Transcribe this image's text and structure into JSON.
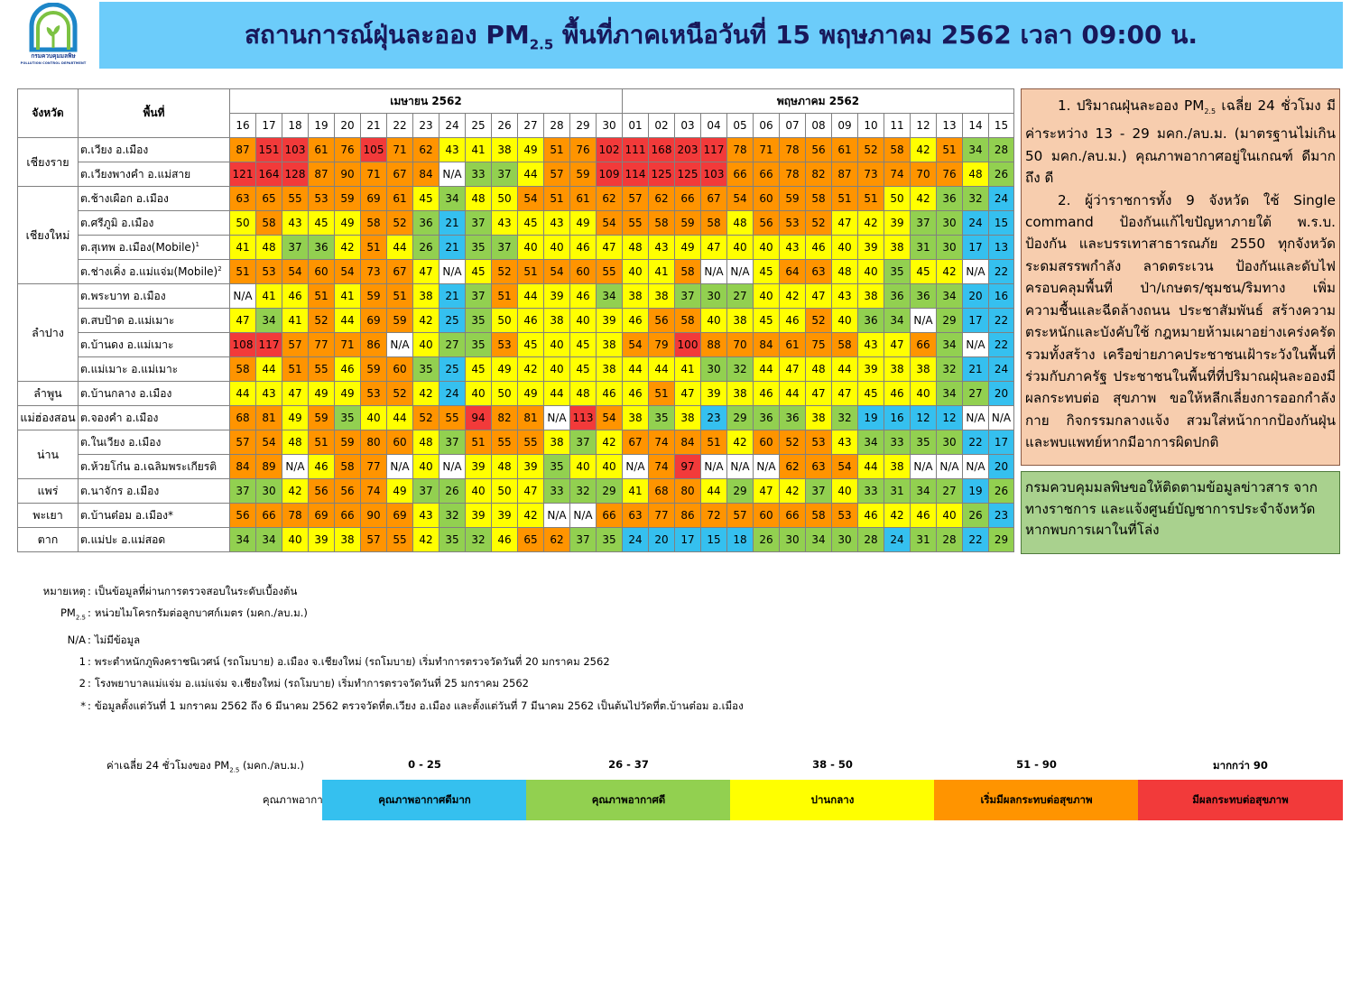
{
  "logo": {
    "org_th": "กรมควบคุมมลพิษ",
    "org_en": "POLLUTION CONTROL DEPARTMENT"
  },
  "title": {
    "pre": "สถานการณ์ฝุ่นละออง PM",
    "sub": "2.5",
    "post": " พื้นที่ภาคเหนือวันที่ 15 พฤษภาคม 2562 เวลา 09:00 น."
  },
  "table": {
    "col_province": "จังหวัด",
    "col_area": "พื้นที่",
    "month1": "เมษายน 2562",
    "month2": "พฤษภาคม 2562",
    "days": [
      "16",
      "17",
      "18",
      "19",
      "20",
      "21",
      "22",
      "23",
      "24",
      "25",
      "26",
      "27",
      "28",
      "29",
      "30",
      "01",
      "02",
      "03",
      "04",
      "05",
      "06",
      "07",
      "08",
      "09",
      "10",
      "11",
      "12",
      "13",
      "14",
      "15"
    ],
    "provinces": [
      {
        "name": "เชียงราย",
        "rows": [
          {
            "area": "ต.เวียง อ.เมือง",
            "sup": "",
            "values": [
              "87",
              "151",
              "103",
              "61",
              "76",
              "105",
              "71",
              "62",
              "43",
              "41",
              "38",
              "49",
              "51",
              "76",
              "102",
              "111",
              "168",
              "203",
              "117",
              "78",
              "71",
              "78",
              "56",
              "61",
              "52",
              "58",
              "42",
              "51",
              "34",
              "28"
            ]
          },
          {
            "area": "ต.เวียงพางคำ อ.แม่สาย",
            "sup": "",
            "values": [
              "121",
              "164",
              "128",
              "87",
              "90",
              "71",
              "67",
              "84",
              "N/A",
              "33",
              "37",
              "44",
              "57",
              "59",
              "109",
              "114",
              "125",
              "125",
              "103",
              "66",
              "66",
              "78",
              "82",
              "87",
              "73",
              "74",
              "70",
              "76",
              "48",
              "26"
            ]
          }
        ]
      },
      {
        "name": "เชียงใหม่",
        "rows": [
          {
            "area": "ต.ช้างเผือก อ.เมือง",
            "sup": "",
            "values": [
              "63",
              "65",
              "55",
              "53",
              "59",
              "69",
              "61",
              "45",
              "34",
              "48",
              "50",
              "54",
              "51",
              "61",
              "62",
              "57",
              "62",
              "66",
              "67",
              "54",
              "60",
              "59",
              "58",
              "51",
              "51",
              "50",
              "42",
              "36",
              "32",
              "24"
            ]
          },
          {
            "area": "ต.ศรีภูมิ อ.เมือง",
            "sup": "",
            "values": [
              "50",
              "58",
              "43",
              "45",
              "49",
              "58",
              "52",
              "36",
              "21",
              "37",
              "43",
              "45",
              "43",
              "49",
              "54",
              "55",
              "58",
              "59",
              "58",
              "48",
              "56",
              "53",
              "52",
              "47",
              "42",
              "39",
              "37",
              "30",
              "24",
              "15"
            ]
          },
          {
            "area": "ต.สุเทพ อ.เมือง(Mobile)",
            "sup": "1",
            "values": [
              "41",
              "48",
              "37",
              "36",
              "42",
              "51",
              "44",
              "26",
              "21",
              "35",
              "37",
              "40",
              "40",
              "46",
              "47",
              "48",
              "43",
              "49",
              "47",
              "40",
              "40",
              "43",
              "46",
              "40",
              "39",
              "38",
              "31",
              "30",
              "17",
              "13"
            ]
          },
          {
            "area": "ต.ช่างเคิ่ง อ.แม่แจ่ม(Mobile)",
            "sup": "2",
            "values": [
              "51",
              "53",
              "54",
              "60",
              "54",
              "73",
              "67",
              "47",
              "N/A",
              "45",
              "52",
              "51",
              "54",
              "60",
              "55",
              "40",
              "41",
              "58",
              "N/A",
              "N/A",
              "45",
              "64",
              "63",
              "48",
              "40",
              "35",
              "45",
              "42",
              "N/A",
              "22"
            ]
          }
        ]
      },
      {
        "name": "ลำปาง",
        "rows": [
          {
            "area": "ต.พระบาท อ.เมือง",
            "sup": "",
            "values": [
              "N/A",
              "41",
              "46",
              "51",
              "41",
              "59",
              "51",
              "38",
              "21",
              "37",
              "51",
              "44",
              "39",
              "46",
              "34",
              "38",
              "38",
              "37",
              "30",
              "27",
              "40",
              "42",
              "47",
              "43",
              "38",
              "36",
              "36",
              "34",
              "20",
              "16"
            ]
          },
          {
            "area": "ต.สบป้าด อ.แม่เมาะ",
            "sup": "",
            "values": [
              "47",
              "34",
              "41",
              "52",
              "44",
              "69",
              "59",
              "42",
              "25",
              "35",
              "50",
              "46",
              "38",
              "40",
              "39",
              "46",
              "56",
              "58",
              "40",
              "38",
              "45",
              "46",
              "52",
              "40",
              "36",
              "34",
              "N/A",
              "29",
              "17",
              "22"
            ]
          },
          {
            "area": "ต.บ้านดง อ.แม่เมาะ",
            "sup": "",
            "values": [
              "108",
              "117",
              "57",
              "77",
              "71",
              "86",
              "N/A",
              "40",
              "27",
              "35",
              "53",
              "45",
              "40",
              "45",
              "38",
              "54",
              "79",
              "100",
              "88",
              "70",
              "84",
              "61",
              "75",
              "58",
              "43",
              "47",
              "66",
              "34",
              "N/A",
              "22"
            ]
          },
          {
            "area": "ต.แม่เมาะ อ.แม่เมาะ",
            "sup": "",
            "values": [
              "58",
              "44",
              "51",
              "55",
              "46",
              "59",
              "60",
              "35",
              "25",
              "45",
              "49",
              "42",
              "40",
              "45",
              "38",
              "44",
              "44",
              "41",
              "30",
              "32",
              "44",
              "47",
              "48",
              "44",
              "39",
              "38",
              "38",
              "32",
              "21",
              "24"
            ]
          }
        ]
      },
      {
        "name": "ลำพูน",
        "rows": [
          {
            "area": "ต.บ้านกลาง อ.เมือง",
            "sup": "",
            "values": [
              "44",
              "43",
              "47",
              "49",
              "49",
              "53",
              "52",
              "42",
              "24",
              "40",
              "50",
              "49",
              "44",
              "48",
              "46",
              "46",
              "51",
              "47",
              "39",
              "38",
              "46",
              "44",
              "47",
              "47",
              "45",
              "46",
              "40",
              "34",
              "27",
              "20"
            ]
          }
        ]
      },
      {
        "name": "แม่ฮ่องสอน",
        "rows": [
          {
            "area": "ต.จองคำ อ.เมือง",
            "sup": "",
            "values": [
              "68",
              "81",
              "49",
              "59",
              "35",
              "40",
              "44",
              "52",
              "55",
              "94",
              "82",
              "81",
              "N/A",
              "113",
              "54",
              "38",
              "35",
              "38",
              "23",
              "29",
              "36",
              "36",
              "38",
              "32",
              "19",
              "16",
              "12",
              "12",
              "N/A",
              "N/A"
            ]
          }
        ]
      },
      {
        "name": "น่าน",
        "rows": [
          {
            "area": "ต.ในเวียง อ.เมือง",
            "sup": "",
            "values": [
              "57",
              "54",
              "48",
              "51",
              "59",
              "80",
              "60",
              "48",
              "37",
              "51",
              "55",
              "55",
              "38",
              "37",
              "42",
              "67",
              "74",
              "84",
              "51",
              "42",
              "60",
              "52",
              "53",
              "43",
              "34",
              "33",
              "35",
              "30",
              "22",
              "17"
            ]
          },
          {
            "area": "ต.ห้วยโก๋น อ.เฉลิมพระเกียรติ",
            "sup": "",
            "values": [
              "84",
              "89",
              "N/A",
              "46",
              "58",
              "77",
              "N/A",
              "40",
              "N/A",
              "39",
              "48",
              "39",
              "35",
              "40",
              "40",
              "N/A",
              "74",
              "97",
              "N/A",
              "N/A",
              "N/A",
              "62",
              "63",
              "54",
              "44",
              "38",
              "N/A",
              "N/A",
              "N/A",
              "20"
            ]
          }
        ]
      },
      {
        "name": "แพร่",
        "rows": [
          {
            "area": "ต.นาจักร อ.เมือง",
            "sup": "",
            "values": [
              "37",
              "30",
              "42",
              "56",
              "56",
              "74",
              "49",
              "37",
              "26",
              "40",
              "50",
              "47",
              "33",
              "32",
              "29",
              "41",
              "68",
              "80",
              "44",
              "29",
              "47",
              "42",
              "37",
              "40",
              "33",
              "31",
              "34",
              "27",
              "19",
              "26"
            ]
          }
        ]
      },
      {
        "name": "พะเยา",
        "rows": [
          {
            "area": "ต.บ้านต๋อม อ.เมือง*",
            "sup": "",
            "values": [
              "56",
              "66",
              "78",
              "69",
              "66",
              "90",
              "69",
              "43",
              "32",
              "39",
              "39",
              "42",
              "N/A",
              "N/A",
              "66",
              "63",
              "77",
              "86",
              "72",
              "57",
              "60",
              "66",
              "58",
              "53",
              "46",
              "42",
              "46",
              "40",
              "26",
              "23"
            ]
          }
        ]
      },
      {
        "name": "ตาก",
        "rows": [
          {
            "area": "ต.แม่ปะ อ.แม่สอด",
            "sup": "",
            "values": [
              "34",
              "34",
              "40",
              "39",
              "38",
              "57",
              "55",
              "42",
              "35",
              "32",
              "46",
              "65",
              "62",
              "37",
              "35",
              "24",
              "20",
              "17",
              "15",
              "18",
              "26",
              "30",
              "34",
              "30",
              "28",
              "24",
              "31",
              "28",
              "22",
              "29"
            ]
          }
        ]
      }
    ]
  },
  "notice": {
    "p1_pre": "1. ปริมาณฝุ่นละออง PM",
    "p1_sub": "2.5",
    "p1_post": " เฉลี่ย 24 ชั่วโมง มีค่าระหว่าง 13 - 29 มคก./ลบ.ม. (มาตรฐานไม่เกิน 50 มคก./ลบ.ม.) คุณภาพอากาศอยู่ในเกณฑ์ ดีมากถึง ดี",
    "p2": "2. ผู้ว่าราชการทั้ง 9 จังหวัด ใช้ Single command ป้องกันแก้ไขปัญหาภายใต้ พ.ร.บ. ป้องกัน และบรรเทาสาธารณภัย 2550 ทุกจังหวัด ระดมสรรพกำลัง ลาดตระเวน ป้องกันและดับไฟ ครอบคลุมพื้นที่ ป่า/เกษตร/ชุมชน/ริมทาง เพิ่มความชื้นและฉีดล้างถนน ประชาสัมพันธ์ สร้างความตระหนักและบังคับใช้ กฎหมายห้ามเผาอย่างเคร่งครัดรวมทั้งสร้าง เครือข่ายภาคประชาชนเฝ้าระวังในพื้นที่ร่วมกับภาครัฐ ประชาชนในพื้นที่ที่ปริมาณฝุ่นละอองมีผลกระทบต่อ สุขภาพ ขอให้หลีกเลี่ยงการออกกำลังกาย กิจกรรมกลางแจ้ง สวมใส่หน้ากากป้องกันฝุ่น และพบแพทย์หากมีอาการผิดปกติ",
    "contact": "กรมควบคุมมลพิษขอให้ติดตามข้อมูลข่าวสาร จากทางราชการ และแจ้งศูนย์บัญชาการประจำจังหวัด หากพบการเผาในที่โล่ง"
  },
  "footnotes": {
    "remark_key": "หมายเหตุ",
    "remark_text": "เป็นข้อมูลที่ผ่านการตรวจสอบในระดับเบื้องต้น",
    "pm_key_pre": "PM",
    "pm_key_sub": "2.5",
    "pm_text": "หน่วยไมโครกรัมต่อลูกบาศก์เมตร (มคก./ลบ.ม.)",
    "na_key": "N/A",
    "na_text": "ไม่มีข้อมูล",
    "n1_key": "1",
    "n1_text": "พระตำหนักภูพิงคราชนิเวศน์ (รถโมบาย) อ.เมือง จ.เชียงใหม่ (รถโมบาย) เริ่มทำการตรวจวัดวันที่ 20 มกราคม 2562",
    "n2_key": "2",
    "n2_text": "โรงพยาบาลแม่แจ่ม อ.แม่แจ่ม จ.เชียงใหม่ (รถโมบาย) เริ่มทำการตรวจวัดวันที่ 25 มกราคม 2562",
    "star_key": "*",
    "star_text": "ข้อมูลตั้งแต่วันที่ 1 มกราคม 2562 ถึง 6 มีนาคม 2562 ตรวจวัดที่ต.เวียง อ.เมือง และตั้งแต่วันที่ 7 มีนาคม 2562 เป็นต้นไปวัดที่ต.บ้านต๋อม อ.เมือง"
  },
  "legend": {
    "avg_label_pre": "ค่าเฉลี่ย 24 ชั่วโมงของ PM",
    "avg_label_sub": "2.5",
    "avg_label_post": " (มคก./ลบ.ม.)",
    "quality_label": "คุณภาพอากาศ",
    "levels": [
      {
        "range": "0 - 25",
        "label": "คุณภาพอากาศดีมาก",
        "color": "#35c0ef"
      },
      {
        "range": "26 - 37",
        "label": "คุณภาพอากาศดี",
        "color": "#92d050"
      },
      {
        "range": "38 - 50",
        "label": "ปานกลาง",
        "color": "#ffff00"
      },
      {
        "range": "51 - 90",
        "label": "เริ่มมีผลกระทบต่อสุขภาพ",
        "color": "#ff9400"
      },
      {
        "range": "มากกว่า 90",
        "label": "มีผลกระทบต่อสุขภาพ",
        "color": "#f23a3a"
      }
    ]
  }
}
